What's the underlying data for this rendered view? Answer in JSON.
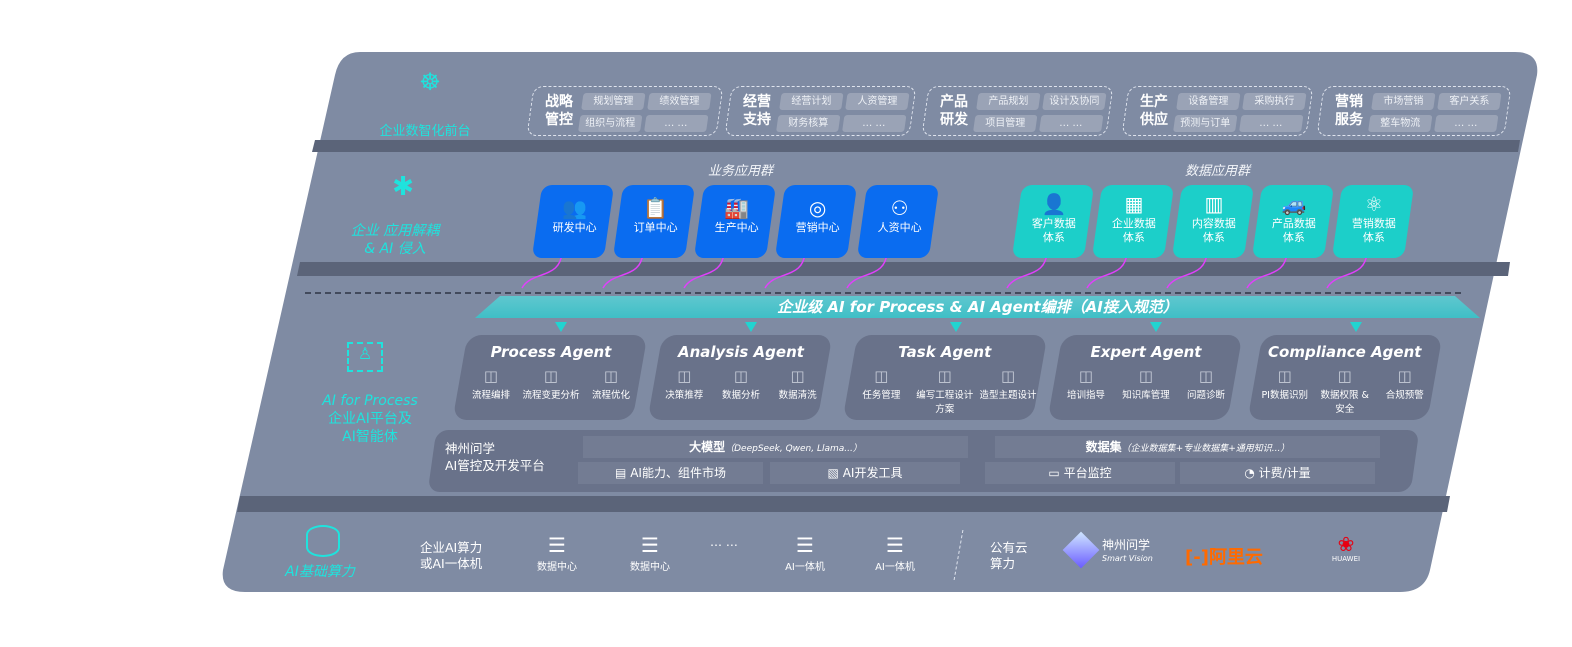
{
  "layers": {
    "frontend": {
      "label": "企业数智化前台",
      "icon": "brain-icon"
    },
    "apps": {
      "label_line1": "企业 应用解耦",
      "label_line2": "& AI 侵入",
      "icon": "molecule-icon"
    },
    "ai": {
      "label_line1": "AI for Process",
      "label_line2": "企业AI平台及",
      "label_line3": "AI智能体",
      "icon": "face-scan-icon"
    },
    "compute": {
      "label": "AI基础算力",
      "icon": "database-icon"
    }
  },
  "groups": [
    {
      "title1": "战略",
      "title2": "管控",
      "chips": [
        "规划管理",
        "绩效管理",
        "组织与流程",
        "… …"
      ]
    },
    {
      "title1": "经营",
      "title2": "支持",
      "chips": [
        "经营计划",
        "人资管理",
        "财务核算",
        "… …"
      ]
    },
    {
      "title1": "产品",
      "title2": "研发",
      "chips": [
        "产品规划",
        "设计及协同",
        "项目管理",
        "… …"
      ]
    },
    {
      "title1": "生产",
      "title2": "供应",
      "chips": [
        "设备管理",
        "采购执行",
        "预测与订单",
        "… …"
      ]
    },
    {
      "title1": "营销",
      "title2": "服务",
      "chips": [
        "市场营销",
        "客户关系",
        "整车物流",
        "… …"
      ]
    }
  ],
  "business_apps": {
    "title": "业务应用群",
    "items": [
      {
        "label": "研发中心",
        "icon": "users-icon"
      },
      {
        "label": "订单中心",
        "icon": "clipboard-icon"
      },
      {
        "label": "生产中心",
        "icon": "factory-icon"
      },
      {
        "label": "营销中心",
        "icon": "target-icon"
      },
      {
        "label": "人资中心",
        "icon": "person-icon"
      }
    ]
  },
  "data_apps": {
    "title": "数据应用群",
    "items": [
      {
        "l1": "客户数据",
        "l2": "体系",
        "icon": "user-icon"
      },
      {
        "l1": "企业数据",
        "l2": "体系",
        "icon": "building-icon"
      },
      {
        "l1": "内容数据",
        "l2": "体系",
        "icon": "books-icon"
      },
      {
        "l1": "产品数据",
        "l2": "体系",
        "icon": "car-icon"
      },
      {
        "l1": "营销数据",
        "l2": "体系",
        "icon": "atom-icon"
      }
    ]
  },
  "banner": "企业级 AI for Process & AI Agent编排（AI接入规范）",
  "agents": [
    {
      "name": "Process Agent",
      "items": [
        "流程编排",
        "流程变更分析",
        "流程优化"
      ]
    },
    {
      "name": "Analysis Agent",
      "items": [
        "决策推荐",
        "数据分析",
        "数据清洗"
      ]
    },
    {
      "name": "Task Agent",
      "items": [
        "任务管理",
        "编写工程设计方案",
        "造型主题设计"
      ]
    },
    {
      "name": "Expert Agent",
      "items": [
        "培训指导",
        "知识库管理",
        "问题诊断"
      ]
    },
    {
      "name": "Compliance Agent",
      "items": [
        "PI数据识别",
        "数据权限 & 安全",
        "合规预警"
      ]
    }
  ],
  "platform": {
    "title1": "神州问学",
    "title2": "AI管控及开发平台",
    "model": "大模型",
    "model_note": "（DeepSeek, Qwen, Llama...）",
    "dataset": "数据集",
    "dataset_note": "（企业数据集+专业数据集+通用知识...）",
    "tools": [
      "AI能力、组件市场",
      "AI开发工具",
      "平台监控",
      "计费/计量"
    ]
  },
  "compute": {
    "private_l1": "企业AI算力",
    "private_l2": "或AI一体机",
    "items": [
      "数据中心",
      "数据中心",
      "AI一体机",
      "AI一体机"
    ],
    "ellipsis": "… …",
    "public_l1": "公有云",
    "public_l2": "算力",
    "vendors": {
      "smartvision_cn": "神州问学",
      "smartvision_en": "Smart Vision",
      "aliyun": "阿里云",
      "huawei": "HUAWEI"
    }
  },
  "colors": {
    "panel": "#7f8ba3",
    "blue": "#0a6cf0",
    "teal": "#1ccfc9",
    "cyan": "#1fe3dd",
    "magenta": "#e040fb",
    "aliyun": "#ff6a00",
    "huawei": "#e60012"
  }
}
